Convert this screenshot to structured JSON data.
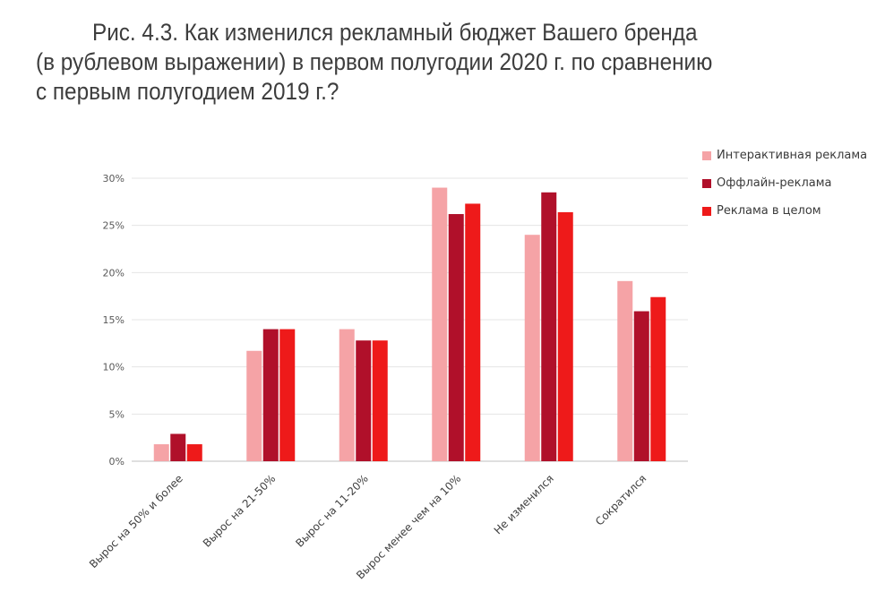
{
  "title": {
    "line1": "Рис. 4.3. Как изменился рекламный бюджет Вашего бренда",
    "line2": "(в рублевом выражении) в первом полугодии 2020 г. по сравнению",
    "line3": "с первым полугодием 2019 г.?"
  },
  "chart_data": {
    "type": "bar",
    "categories": [
      "Выроc на 50% и более",
      "Выроc на 21-50%",
      "Выроc на 11-20%",
      "Выроc менее чем на 10%",
      "Не изменился",
      "Сократился"
    ],
    "series": [
      {
        "name": "Интерактивная реклама",
        "color": "#f5a3a6",
        "values": [
          1.8,
          11.7,
          14.0,
          29.0,
          24.0,
          19.1
        ]
      },
      {
        "name": "Оффлайн-реклама",
        "color": "#b0102a",
        "values": [
          2.9,
          14.0,
          12.8,
          26.2,
          28.5,
          15.9
        ]
      },
      {
        "name": "Реклама в целом",
        "color": "#ee1a1a",
        "values": [
          1.8,
          14.0,
          12.8,
          27.3,
          26.4,
          17.4
        ]
      }
    ],
    "yticks": [
      "0%",
      "5%",
      "10%",
      "15%",
      "20%",
      "25%",
      "30%"
    ],
    "ylim": [
      0,
      30
    ],
    "grid": true,
    "legend": "top-right"
  }
}
